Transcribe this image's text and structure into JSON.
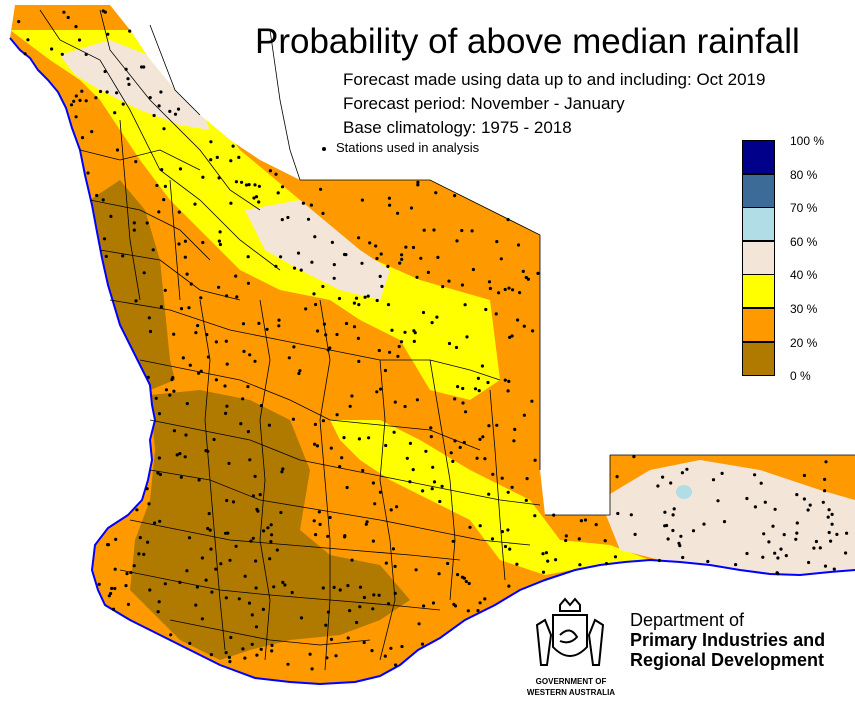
{
  "title": "Probability of above median rainfall",
  "forecast_made": "Forecast made using data up to and including: Oct 2019",
  "forecast_period": "Forecast period: November - January",
  "base_climatology": "Base climatology: 1975 - 2018",
  "stations_label": "Stations used in analysis",
  "legend": {
    "labels": [
      "100 %",
      "80 %",
      "70 %",
      "60 %",
      "40 %",
      "30 %",
      "20 %",
      "0 %"
    ],
    "colors": [
      "#00008b",
      "#3b6b96",
      "#b0dde6",
      "#f3e6d9",
      "#ffff00",
      "#ff9900",
      "#b07a00"
    ]
  },
  "department": {
    "line1": "Department of",
    "line2": "Primary Industries and",
    "line3": "Regional Development"
  },
  "government": {
    "line1": "GOVERNMENT OF",
    "line2": "WESTERN AUSTRALIA"
  },
  "colors": {
    "coastline": "#0000ff",
    "boundaries": "#000000",
    "prob_0_20": "#b07a00",
    "prob_20_30": "#ff9900",
    "prob_30_40": "#ffff00",
    "prob_40_60": "#f3e6d9",
    "prob_60_70": "#b0dde6"
  }
}
